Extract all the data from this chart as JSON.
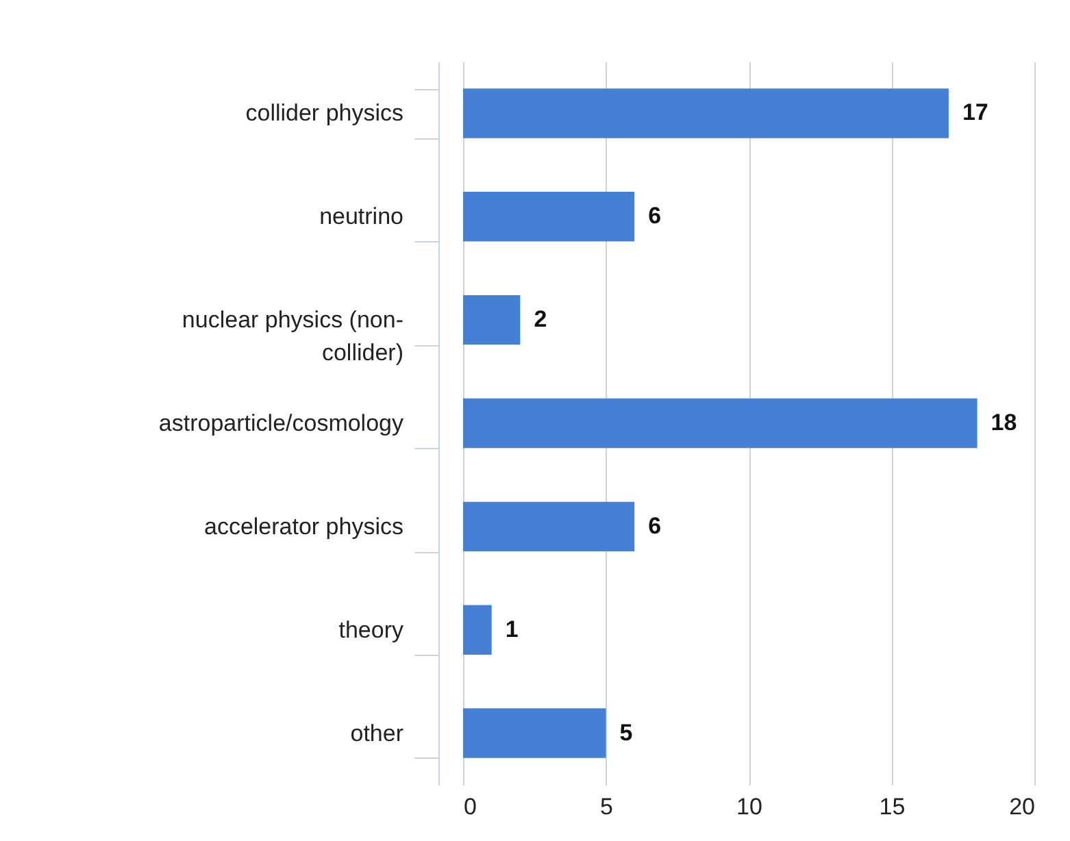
{
  "chart_data": {
    "type": "bar",
    "orientation": "horizontal",
    "categories": [
      "collider physics",
      "neutrino",
      "nuclear physics (non-collider)",
      "astroparticle/cosmology",
      "accelerator physics",
      "theory",
      "other"
    ],
    "values": [
      17,
      6,
      2,
      18,
      6,
      1,
      5
    ],
    "color": "#4680d4",
    "xlim": [
      0,
      20
    ],
    "xticks": [
      0,
      5,
      10,
      15,
      20
    ],
    "grid": "x",
    "data_labels": true
  }
}
